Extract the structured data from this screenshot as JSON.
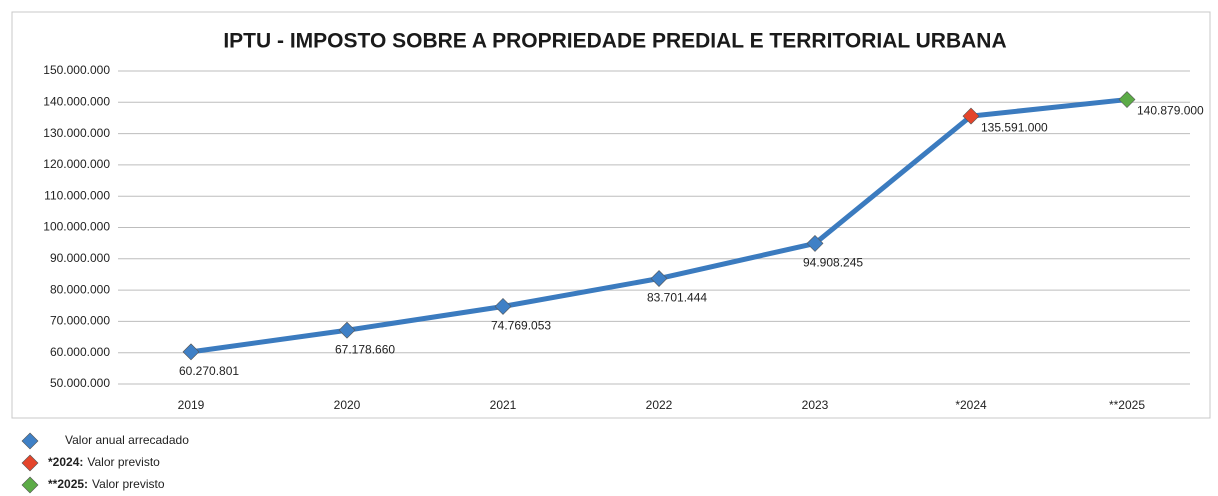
{
  "chart_data": {
    "type": "line",
    "title": "IPTU - IMPOSTO SOBRE A PROPRIEDADE PREDIAL E TERRITORIAL URBANA",
    "categories": [
      "2019",
      "2020",
      "2021",
      "2022",
      "2023",
      "*2024",
      "**2025"
    ],
    "series": [
      {
        "name": "Valor anual arrecadado",
        "color": "#3b7bbf",
        "values": [
          60270801,
          67178660,
          74769053,
          83701444,
          94908245,
          135591000,
          140879000
        ],
        "value_labels": [
          "60.270.801",
          "67.178.660",
          "74.769.053",
          "83.701.444",
          "94.908.245",
          "135.591.000",
          "140.879.000"
        ],
        "marker_colors": [
          "#3f80c6",
          "#3f80c6",
          "#3f80c6",
          "#3f80c6",
          "#3f80c6",
          "#e4452b",
          "#5cab47"
        ]
      }
    ],
    "ylim": [
      50000000,
      150000000
    ],
    "yticks": [
      {
        "value": 50000000,
        "label": "50.000.000"
      },
      {
        "value": 60000000,
        "label": "60.000.000"
      },
      {
        "value": 70000000,
        "label": "70.000.000"
      },
      {
        "value": 80000000,
        "label": "80.000.000"
      },
      {
        "value": 90000000,
        "label": "90.000.000"
      },
      {
        "value": 100000000,
        "label": "100.000.000"
      },
      {
        "value": 110000000,
        "label": "110.000.000"
      },
      {
        "value": 120000000,
        "label": "120.000.000"
      },
      {
        "value": 130000000,
        "label": "130.000.000"
      },
      {
        "value": 140000000,
        "label": "140.000.000"
      },
      {
        "value": 150000000,
        "label": "150.000.000"
      }
    ],
    "grid": true,
    "legend": [
      {
        "label": "Valor anual arrecadado",
        "color": "#3f80c6"
      },
      {
        "bold": "*2024:",
        "label": "Valor previsto",
        "color": "#e4452b"
      },
      {
        "bold": "**2025:",
        "label": "Valor previsto",
        "color": "#5cab47"
      }
    ]
  }
}
